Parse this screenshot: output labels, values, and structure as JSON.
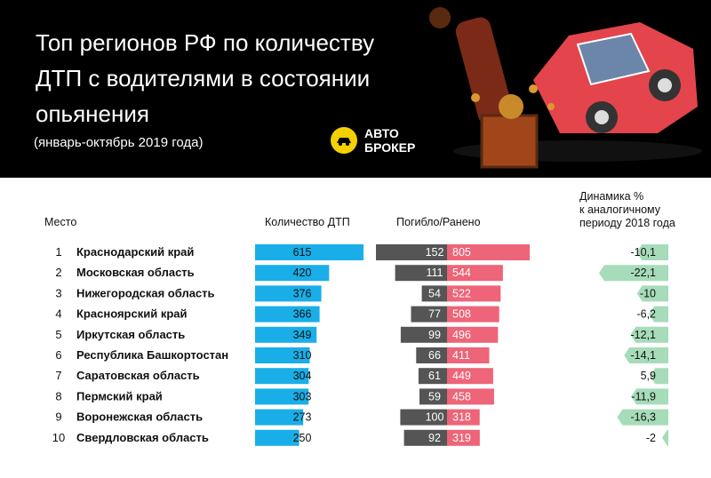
{
  "header": {
    "title_line1": "Топ регионов РФ по количеству",
    "title_line2": "ДТП  с водителями в состоянии",
    "title_line3": "опьянения",
    "subtitle": "(январь-октябрь 2019 года)",
    "logo_line1": "АВТО",
    "logo_line2": "БРОКЕР"
  },
  "columns": {
    "place": "Место",
    "count": "Количество ДТП",
    "casualties": "Погибло/Ранено",
    "dynamics_line1": "Динамика %",
    "dynamics_line2": "к аналогичному",
    "dynamics_line3": "периоду 2018 года"
  },
  "colors": {
    "count_bar": "#19aee8",
    "deaths_bar": "#555555",
    "injured_bar": "#ee6478",
    "dynamics_bar": "#a6dcb9",
    "header_bg": "#000000",
    "logo_yellow": "#f4d000"
  },
  "chart_data": {
    "type": "table",
    "rows": [
      {
        "place": "1",
        "region": "Краснодарский край",
        "count": 615,
        "deaths": 152,
        "injured": 805,
        "dynamics": -10.1,
        "dynamics_label": "-10,1"
      },
      {
        "place": "2",
        "region": "Московская область",
        "count": 420,
        "deaths": 111,
        "injured": 544,
        "dynamics": -22.1,
        "dynamics_label": "-22,1"
      },
      {
        "place": "3",
        "region": "Нижегородская область",
        "count": 376,
        "deaths": 54,
        "injured": 522,
        "dynamics": -10,
        "dynamics_label": "-10"
      },
      {
        "place": "4",
        "region": "Красноярский край",
        "count": 366,
        "deaths": 77,
        "injured": 508,
        "dynamics": -6.2,
        "dynamics_label": "-6,2"
      },
      {
        "place": "5",
        "region": "Иркутская область",
        "count": 349,
        "deaths": 99,
        "injured": 496,
        "dynamics": -12.1,
        "dynamics_label": "-12,1"
      },
      {
        "place": "6",
        "region": "Республика Башкортостан",
        "count": 310,
        "deaths": 66,
        "injured": 411,
        "dynamics": -14.1,
        "dynamics_label": "-14,1"
      },
      {
        "place": "7",
        "region": "Саратовская область",
        "count": 304,
        "deaths": 61,
        "injured": 449,
        "dynamics": 5.9,
        "dynamics_label": "5,9"
      },
      {
        "place": "8",
        "region": "Пермский край",
        "count": 303,
        "deaths": 59,
        "injured": 458,
        "dynamics": -11.9,
        "dynamics_label": "-11,9"
      },
      {
        "place": "9",
        "region": "Воронежская область",
        "count": 273,
        "deaths": 100,
        "injured": 318,
        "dynamics": -16.3,
        "dynamics_label": "-16,3"
      },
      {
        "place": "10",
        "region": "Свердловская область",
        "count": 250,
        "deaths": 92,
        "injured": 319,
        "dynamics": -2,
        "dynamics_label": "-2"
      }
    ]
  }
}
